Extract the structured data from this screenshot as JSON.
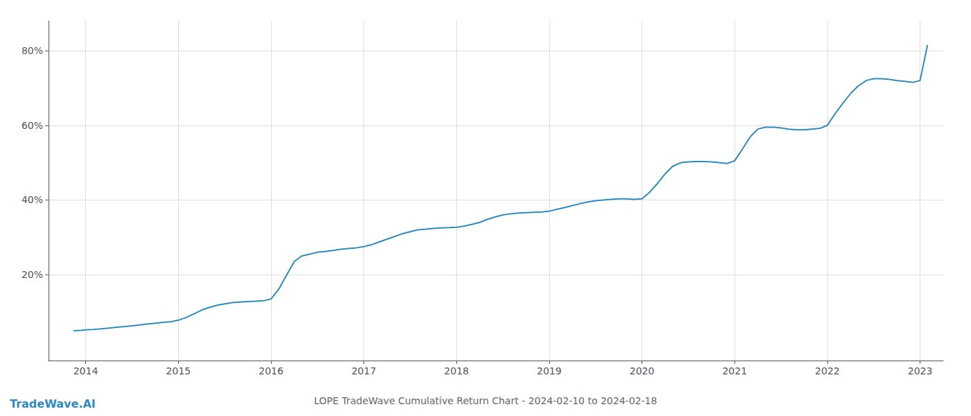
{
  "chart_data": {
    "type": "line",
    "title": "LOPE TradeWave Cumulative Return Chart - 2024-02-10 to 2024-02-18",
    "annotations": [
      "TradeWave.AI"
    ],
    "color": "#2e8bc0",
    "grid": true,
    "x": [
      2013.87,
      2013.95,
      2014.0,
      2014.08,
      2014.17,
      2014.25,
      2014.33,
      2014.42,
      2014.5,
      2014.58,
      2014.67,
      2014.75,
      2014.83,
      2014.92,
      2015.0,
      2015.08,
      2015.17,
      2015.25,
      2015.33,
      2015.42,
      2015.5,
      2015.58,
      2015.67,
      2015.75,
      2015.83,
      2015.92,
      2016.0,
      2016.08,
      2016.17,
      2016.25,
      2016.33,
      2016.42,
      2016.5,
      2016.58,
      2016.67,
      2016.75,
      2016.83,
      2016.92,
      2017.0,
      2017.08,
      2017.17,
      2017.25,
      2017.33,
      2017.42,
      2017.5,
      2017.58,
      2017.67,
      2017.75,
      2017.83,
      2017.92,
      2018.0,
      2018.08,
      2018.17,
      2018.25,
      2018.33,
      2018.42,
      2018.5,
      2018.58,
      2018.67,
      2018.75,
      2018.83,
      2018.92,
      2019.0,
      2019.08,
      2019.17,
      2019.25,
      2019.33,
      2019.42,
      2019.5,
      2019.58,
      2019.67,
      2019.75,
      2019.83,
      2019.92,
      2020.0,
      2020.08,
      2020.17,
      2020.25,
      2020.33,
      2020.42,
      2020.5,
      2020.58,
      2020.67,
      2020.75,
      2020.83,
      2020.92,
      2021.0,
      2021.08,
      2021.17,
      2021.25,
      2021.33,
      2021.42,
      2021.5,
      2021.58,
      2021.67,
      2021.75,
      2021.83,
      2021.92,
      2022.0,
      2022.08,
      2022.17,
      2022.25,
      2022.33,
      2022.42,
      2022.5,
      2022.58,
      2022.67,
      2022.75,
      2022.83,
      2022.92,
      2023.0,
      2023.08
    ],
    "values": [
      5.0,
      5.1,
      5.2,
      5.3,
      5.5,
      5.7,
      5.9,
      6.1,
      6.3,
      6.5,
      6.8,
      7.0,
      7.2,
      7.4,
      7.8,
      8.5,
      9.5,
      10.5,
      11.2,
      11.8,
      12.2,
      12.5,
      12.7,
      12.8,
      12.9,
      13.0,
      13.5,
      16.0,
      20.0,
      23.5,
      25.0,
      25.5,
      26.0,
      26.2,
      26.5,
      26.8,
      27.0,
      27.2,
      27.5,
      28.0,
      28.8,
      29.5,
      30.2,
      31.0,
      31.5,
      32.0,
      32.2,
      32.4,
      32.5,
      32.6,
      32.7,
      33.0,
      33.5,
      34.0,
      34.8,
      35.5,
      36.0,
      36.3,
      36.5,
      36.6,
      36.7,
      36.8,
      37.0,
      37.5,
      38.0,
      38.5,
      39.0,
      39.5,
      39.8,
      40.0,
      40.2,
      40.3,
      40.3,
      40.2,
      40.3,
      42.0,
      44.5,
      47.0,
      49.0,
      50.0,
      50.2,
      50.3,
      50.3,
      50.2,
      50.0,
      49.8,
      50.5,
      53.5,
      57.0,
      59.0,
      59.5,
      59.5,
      59.3,
      59.0,
      58.8,
      58.8,
      59.0,
      59.2,
      60.0,
      63.0,
      66.0,
      68.5,
      70.5,
      72.0,
      72.5,
      72.5,
      72.3,
      72.0,
      71.8,
      71.5,
      72.0,
      81.5
    ],
    "xlim": [
      2013.6,
      2023.25
    ],
    "ylim": [
      -3,
      88
    ],
    "xticks": [
      2014,
      2015,
      2016,
      2017,
      2018,
      2019,
      2020,
      2021,
      2022,
      2023
    ],
    "yticks": [
      {
        "value": 20,
        "label": "20%"
      },
      {
        "value": 40,
        "label": "40%"
      },
      {
        "value": 60,
        "label": "60%"
      },
      {
        "value": 80,
        "label": "80%"
      }
    ]
  }
}
